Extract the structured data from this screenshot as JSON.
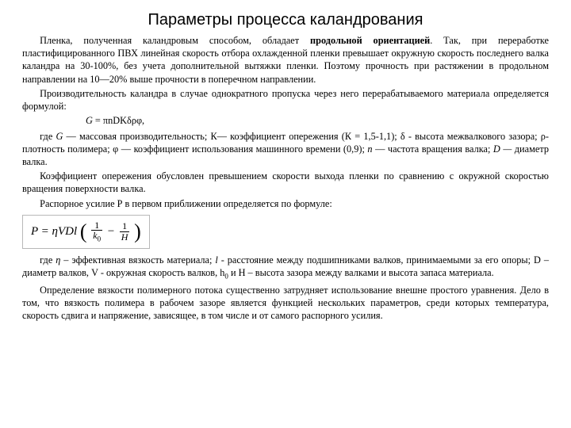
{
  "title": "Параметры процесса каландрования",
  "para1_a": "Пленка, полученная каландровым способом, обладает ",
  "para1_bold": "продольной ориентацией",
  "para1_b": ". Так, при переработке пластифицированного ПВХ линейная скорость отбора охлажденной пленки превышает окружную скорость последнего валка каландра на 30-100%, без учета дополнительной вытяжки пленки. Поэтому прочность при растяжении в продольном направлении на 10—20% выше прочности в поперечном направлении.",
  "para2": "Производительность каландра в случае однократного пропуска через него перерабатываемого материала определяется формулой:",
  "formula1_it": "G",
  "formula1_rest": " = πnDKδρφ,",
  "para3_a": "где ",
  "para3_G": "G",
  "para3_b": " — массовая производительность; К— коэффициент опережения (К = 1,5-1,1); δ - высота межвалкового зазора; ρ- плотность полимера; φ — коэффициент использования машинного времени (0,9); ",
  "para3_n": "n",
  "para3_c": " — частота вращения валка; ",
  "para3_D": "D —",
  "para3_d": " диаметр валка.",
  "para4": "Коэффициент опережения обусловлен превышением скорости выхода пленки по сравнению с окружной скоростью вращения поверхности валка.",
  "para5": "Распорное усилие Р в первом приближении определяется по формуле:",
  "formula2_prefix": "P = ηVDl",
  "formula2_num1": "1",
  "formula2_den1_k": "k",
  "formula2_den1_sub": "0",
  "formula2_minus": " − ",
  "formula2_num2": "1",
  "formula2_den2": "H",
  "para6_a": "где ",
  "para6_eta": "η",
  "para6_gap": " – эффективная вязкость материала; ",
  "para6_l": "l",
  "para6_b": " - расстояние между подшипниками валков, принимаемыми за его опоры; D – диаметр валков, V - окружная скорость валков, h",
  "para6_sub0": "0",
  "para6_c": " и H – высота зазора между валками и высота запаса материала.",
  "para7": "Определение вязкости полимерного потока существенно затрудняет использование внешне простого уравнения. Дело в том, что вязкость полимера в рабочем зазоре является функцией нескольких параметров, среди которых температура, скорость сдвига и напряжение, зависящее, в том числе и от самого распорного усилия."
}
